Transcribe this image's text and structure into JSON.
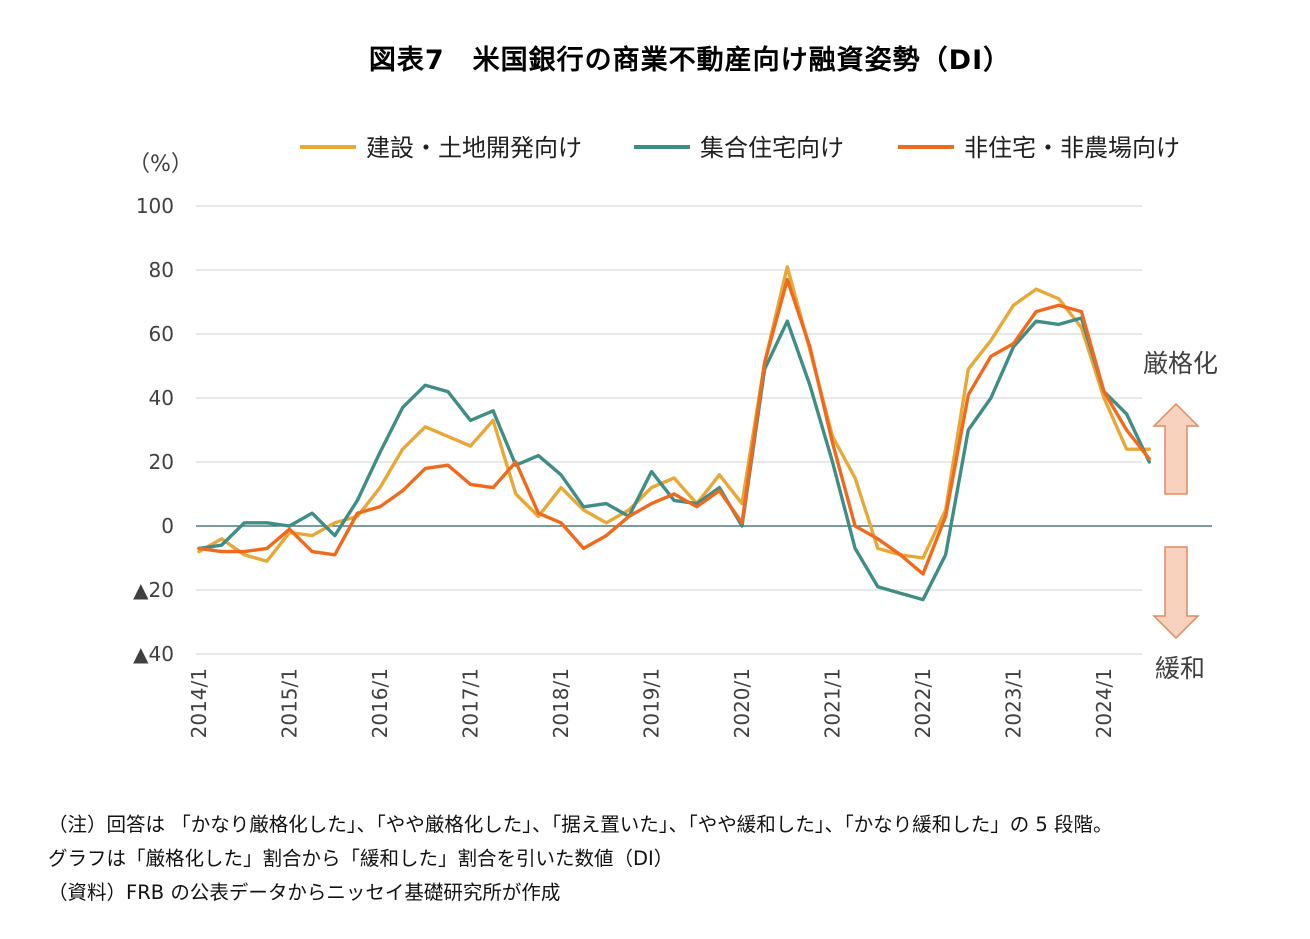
{
  "title": "図表7　米国銀行の商業不動産向け融資姿勢（DI）",
  "chart_data": {
    "type": "line",
    "title": "図表7　米国銀行の商業不動産向け融資姿勢（DI）",
    "ylabel": "（%）",
    "ylim": [
      -40,
      100
    ],
    "yticks": [
      100,
      80,
      60,
      40,
      20,
      0,
      -20,
      -40
    ],
    "ytick_labels": [
      "100",
      "80",
      "60",
      "40",
      "20",
      "0",
      "▲20",
      "▲40"
    ],
    "x_tick_labels": [
      "2014/1",
      "2015/1",
      "2016/1",
      "2017/1",
      "2018/1",
      "2019/1",
      "2020/1",
      "2021/1",
      "2022/1",
      "2023/1",
      "2024/1"
    ],
    "x": [
      "2014/1",
      "2014/4",
      "2014/7",
      "2014/10",
      "2015/1",
      "2015/4",
      "2015/7",
      "2015/10",
      "2016/1",
      "2016/4",
      "2016/7",
      "2016/10",
      "2017/1",
      "2017/4",
      "2017/7",
      "2017/10",
      "2018/1",
      "2018/4",
      "2018/7",
      "2018/10",
      "2019/1",
      "2019/4",
      "2019/7",
      "2019/10",
      "2020/1",
      "2020/4",
      "2020/7",
      "2020/10",
      "2021/1",
      "2021/4",
      "2021/7",
      "2021/10",
      "2022/1",
      "2022/4",
      "2022/7",
      "2022/10",
      "2023/1",
      "2023/4",
      "2023/7",
      "2023/10",
      "2024/1",
      "2024/4",
      "2024/7"
    ],
    "legend_position": "top",
    "grid": true,
    "series": [
      {
        "name": "建設・土地開発向け",
        "color": "#E8A838",
        "values": [
          -8,
          -4,
          -9,
          -11,
          -2,
          -3,
          1,
          3,
          12,
          24,
          31,
          28,
          25,
          33,
          10,
          3,
          12,
          5,
          1,
          5,
          12,
          15,
          7,
          16,
          7,
          51,
          81,
          55,
          28,
          15,
          -7,
          -9,
          -10,
          5,
          49,
          58,
          69,
          74,
          71,
          62,
          40,
          24,
          24
        ]
      },
      {
        "name": "集合住宅向け",
        "color": "#3E8E87",
        "values": [
          -7,
          -6,
          1,
          1,
          0,
          4,
          -3,
          8,
          23,
          37,
          44,
          42,
          33,
          36,
          19,
          22,
          16,
          6,
          7,
          3,
          17,
          8,
          7,
          12,
          0,
          49,
          64,
          44,
          20,
          -7,
          -19,
          -21,
          -23,
          -9,
          30,
          40,
          56,
          64,
          63,
          65,
          42,
          35,
          20
        ]
      },
      {
        "name": "非住宅・非農場向け",
        "color": "#F06A1D",
        "values": [
          -7,
          -8,
          -8,
          -7,
          -1,
          -8,
          -9,
          4,
          6,
          11,
          18,
          19,
          13,
          12,
          20,
          4,
          1,
          -7,
          -3,
          3,
          7,
          10,
          6,
          11,
          1,
          51,
          77,
          56,
          26,
          0,
          -4,
          -9,
          -15,
          3,
          41,
          53,
          57,
          67,
          69,
          67,
          42,
          30,
          21
        ]
      }
    ],
    "annotations": [
      "厳格化",
      "緩和"
    ]
  },
  "notes": [
    "（注）回答は 「かなり厳格化した」、「やや厳格化した」、「据え置いた」、「やや緩和した」、「かなり緩和した」の 5 段階。",
    "グラフは「厳格化した」割合から「緩和した」割合を引いた数値（DI）",
    "（資料）FRB の公表データからニッセイ基礎研究所が作成"
  ]
}
